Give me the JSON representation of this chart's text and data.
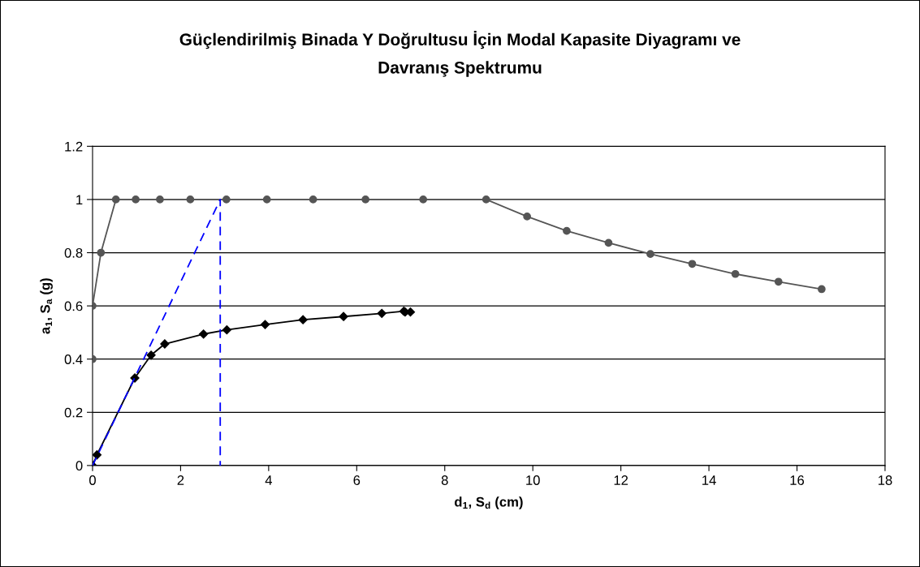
{
  "chart_data": {
    "type": "line",
    "title": "Güçlendirilmiş Binada Y Doğrultusu İçin Modal Kapasite Diyagramı ve\nDavranış Spektrumu",
    "xlabel": "d$_{1}$, S$_{d}$ (cm)",
    "ylabel": "a$_{1}$, S$_{a}$ (g)",
    "xlim": [
      0,
      18
    ],
    "xticks": [
      0,
      2,
      4,
      6,
      8,
      10,
      12,
      14,
      16,
      18
    ],
    "ylim": [
      0,
      1.2
    ],
    "yticks": [
      0,
      0.2,
      0.4,
      0.6,
      0.8,
      1,
      1.2
    ],
    "grid": "y",
    "legend": false,
    "series": [
      {
        "color": "#555555",
        "marker": "circle",
        "line_style": "solid",
        "x": [
          0,
          0,
          0.19,
          0.53,
          0.98,
          1.53,
          2.22,
          3.04,
          3.96,
          5.01,
          6.2,
          7.51,
          8.94,
          9.87,
          10.77,
          11.72,
          12.67,
          13.62,
          14.6,
          15.58,
          16.56
        ],
        "values": [
          0.4,
          0.6,
          0.8,
          1.0,
          1.0,
          1.0,
          1.0,
          1.0,
          1.0,
          1.0,
          1.0,
          1.0,
          1.0,
          0.936,
          0.882,
          0.837,
          0.795,
          0.758,
          0.72,
          0.691,
          0.663
        ]
      },
      {
        "color": "#000000",
        "marker": "diamond",
        "line_style": "solid",
        "x": [
          0,
          0.1,
          0.96,
          1.33,
          1.64,
          2.52,
          3.05,
          3.92,
          4.78,
          5.7,
          6.57,
          7.07,
          7.1,
          7.22
        ],
        "values": [
          0,
          0.04,
          0.329,
          0.415,
          0.457,
          0.494,
          0.51,
          0.53,
          0.548,
          0.56,
          0.572,
          0.58,
          0.577,
          0.577
        ]
      },
      {
        "color": "#0000ff",
        "marker": "none",
        "line_style": "dashed",
        "x": [
          0,
          2.9,
          2.9
        ],
        "values": [
          0,
          1.0,
          0
        ]
      }
    ]
  }
}
